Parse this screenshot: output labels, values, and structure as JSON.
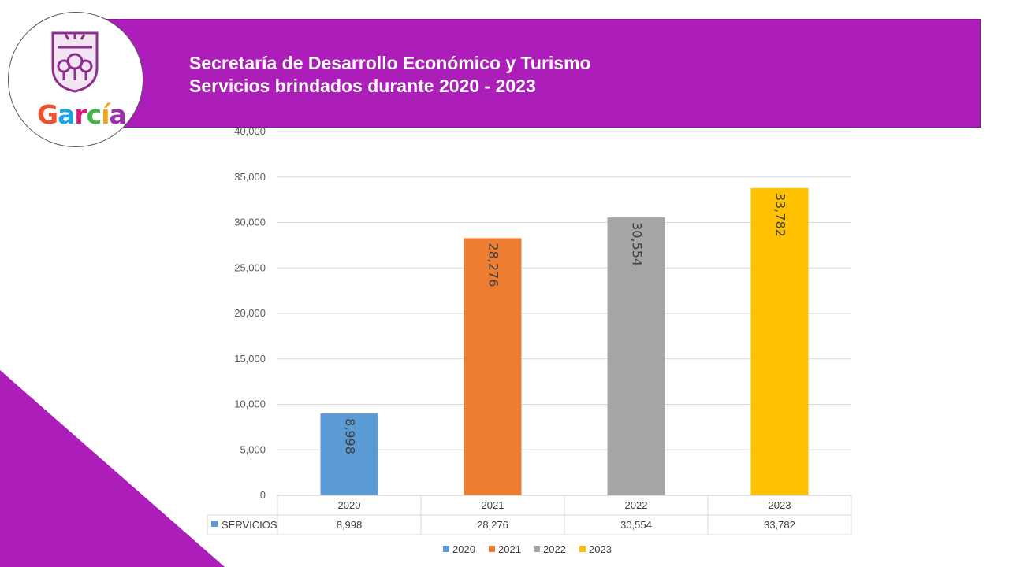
{
  "header": {
    "title_line1": "Secretaría de Desarrollo Económico y Turismo",
    "title_line2": "Servicios brindados durante 2020 - 2023",
    "background_color": "#ad1db9"
  },
  "logo": {
    "wordmark": [
      "G",
      "a",
      "r",
      "c",
      "í",
      "a"
    ],
    "wordmark_colors": [
      "#f0502c",
      "#1ba5e0",
      "#e5147b",
      "#3fb54a",
      "#f7a21b",
      "#9b2fae"
    ],
    "crest_color": "#8e2e8e"
  },
  "chart_data": {
    "type": "bar",
    "categories": [
      "2020",
      "2021",
      "2022",
      "2023"
    ],
    "series": [
      {
        "name": "SERVICIOS",
        "values": [
          8998,
          28276,
          30554,
          33782
        ],
        "labels": [
          "8,998",
          "28,276",
          "30,554",
          "33,782"
        ]
      }
    ],
    "colors": [
      "#5b9bd5",
      "#ed7d31",
      "#a5a5a5",
      "#ffc000"
    ],
    "yticks": [
      "0",
      "5,000",
      "10,000",
      "15,000",
      "20,000",
      "25,000",
      "30,000",
      "35,000",
      "40,000"
    ],
    "ylim": [
      0,
      40000
    ],
    "ystep": 5000,
    "grid": true,
    "data_table": {
      "row_label": "SERVICIOS",
      "values": [
        "8,998",
        "28,276",
        "30,554",
        "33,782"
      ]
    },
    "legend": {
      "position": "bottom",
      "entries": [
        "2020",
        "2021",
        "2022",
        "2023"
      ]
    },
    "legend_key_color": "#5b9bd5"
  }
}
